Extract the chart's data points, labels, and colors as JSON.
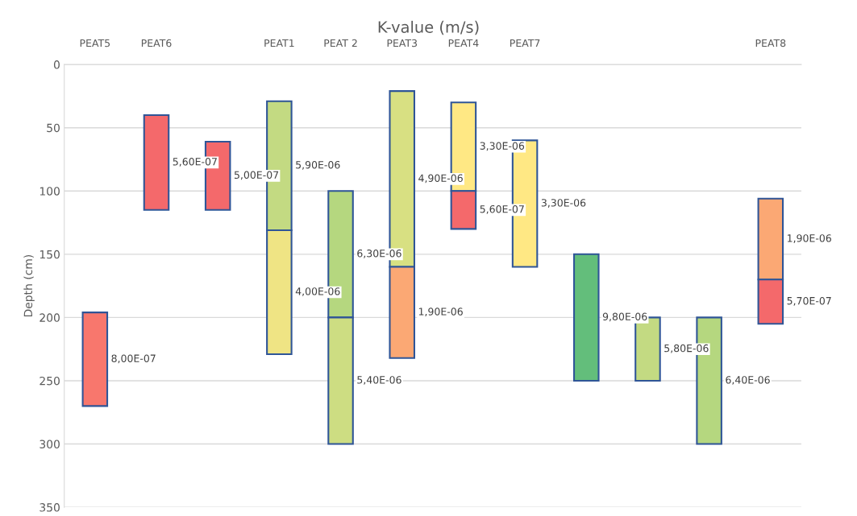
{
  "chart_data": {
    "type": "bar",
    "title": "K-value (m/s)",
    "ylabel": "Depth (cm)",
    "categories": [
      "PEAT5",
      "PEAT6",
      null,
      "PEAT1",
      "PEAT 2",
      "PEAT3",
      "PEAT4",
      "PEAT7",
      null,
      null,
      null,
      "PEAT8"
    ],
    "stacked": true,
    "series": [
      {
        "base": [
          196,
          40,
          61,
          29,
          100,
          21,
          30,
          60,
          150,
          200,
          200,
          106
        ],
        "values": [
          74,
          75,
          54,
          102,
          100,
          139,
          70,
          100,
          100,
          50,
          100,
          64
        ],
        "colors": [
          "#f8776d",
          "#f4696b",
          "#f4696b",
          "#c3da82",
          "#b5d77f",
          "#d8e082",
          "#ffe884",
          "#ffe884",
          "#63be7b",
          "#c3da82",
          "#b5d77f",
          "#fba874"
        ]
      },
      {
        "base": [
          null,
          null,
          null,
          131,
          200,
          160,
          100,
          null,
          null,
          null,
          null,
          170
        ],
        "values": [
          null,
          null,
          null,
          98,
          100,
          72,
          30,
          null,
          null,
          null,
          null,
          35
        ],
        "colors": [
          null,
          null,
          null,
          "#efe484",
          "#cddd82",
          "#fba874",
          "#f4696b",
          null,
          null,
          null,
          null,
          "#f4696b"
        ]
      }
    ],
    "annotations": [
      "8,00E-07",
      "5,60E-07",
      "5,00E-07",
      "5,90E-06",
      "4,00E-06",
      "6,30E-06",
      "5,40E-06",
      "4,90E-06",
      "1,90E-06",
      "3,30E-06",
      "5,60E-07",
      "3,30E-06",
      "9,80E-06",
      "5,80E-06",
      "6,40E-06",
      "1,90E-06",
      "5,70E-07"
    ],
    "ylim": [
      350,
      0
    ],
    "yticks": [
      0,
      50,
      100,
      150,
      200,
      250,
      300,
      350
    ],
    "grid": "y",
    "legend": false
  }
}
